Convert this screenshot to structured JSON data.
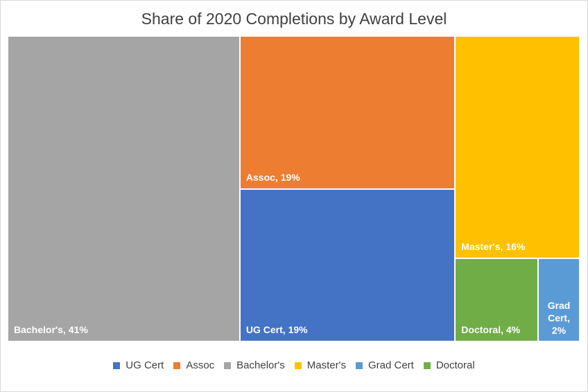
{
  "chart_data": {
    "type": "treemap",
    "title": "Share of 2020 Completions by Award Level",
    "items": [
      {
        "name": "Bachelor's",
        "value": 41,
        "label": "Bachelor's, 41%",
        "color": "#a5a5a5"
      },
      {
        "name": "Assoc",
        "value": 19,
        "label": "Assoc, 19%",
        "color": "#ed7d31"
      },
      {
        "name": "UG Cert",
        "value": 19,
        "label": "UG Cert, 19%",
        "color": "#4472c4"
      },
      {
        "name": "Master's",
        "value": 16,
        "label": "Master's, 16%",
        "color": "#ffc000"
      },
      {
        "name": "Doctoral",
        "value": 4,
        "label": "Doctoral, 4%",
        "color": "#70ad47"
      },
      {
        "name": "Grad Cert",
        "value": 2,
        "label_lines": [
          "Grad",
          "Cert,",
          "2%"
        ],
        "color": "#5b9bd5"
      }
    ],
    "legend": [
      {
        "name": "UG Cert",
        "color": "#4472c4"
      },
      {
        "name": "Assoc",
        "color": "#ed7d31"
      },
      {
        "name": "Bachelor's",
        "color": "#a5a5a5"
      },
      {
        "name": "Master's",
        "color": "#ffc000"
      },
      {
        "name": "Grad Cert",
        "color": "#5b9bd5"
      },
      {
        "name": "Doctoral",
        "color": "#70ad47"
      }
    ]
  }
}
